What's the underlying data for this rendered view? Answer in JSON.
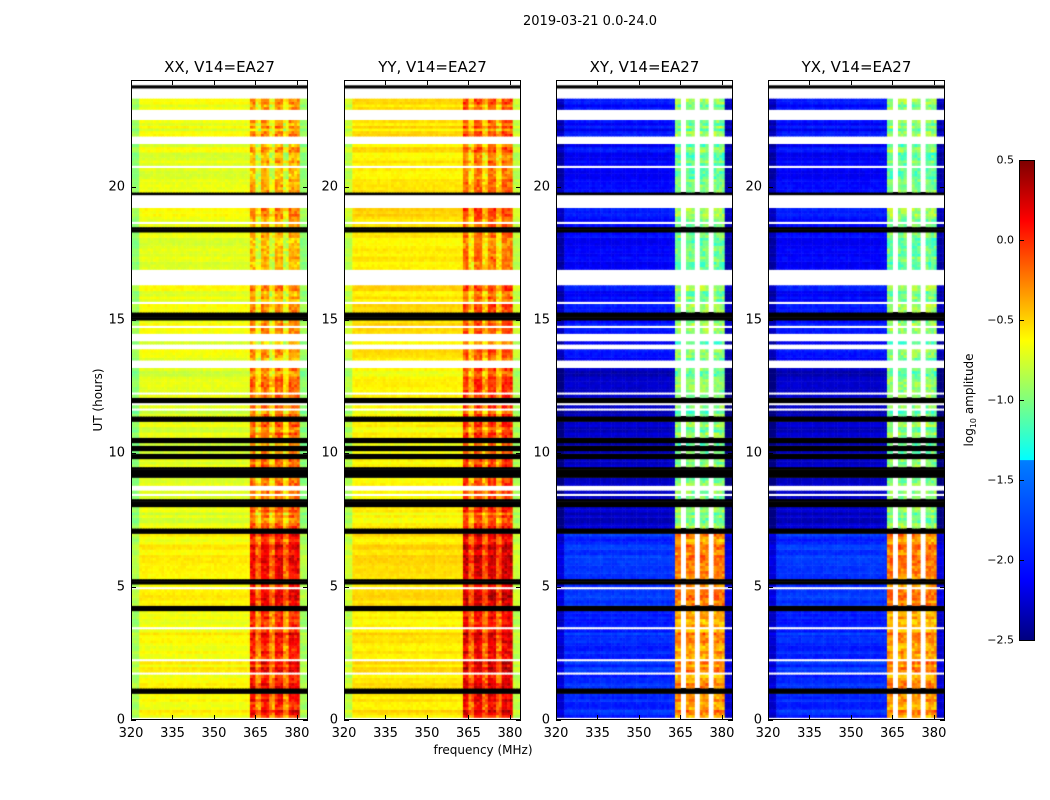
{
  "title": "2019-03-21 0.0-24.0",
  "chart_data": {
    "type": "heatmap",
    "title": "2019-03-21 0.0-24.0",
    "xlabel": "frequency (MHz)",
    "ylabel": "UT (hours)",
    "xlim": [
      320,
      384
    ],
    "ylim": [
      0,
      24
    ],
    "xticks": [
      "320",
      "335",
      "350",
      "365",
      "380"
    ],
    "yticks": [
      "0",
      "5",
      "10",
      "15",
      "20"
    ],
    "colorbar": {
      "label_main": "log",
      "label_sub": "10",
      "label_rest": " amplitude",
      "range": [
        -2.5,
        0.5
      ],
      "ticks": [
        "0.5",
        "0.0",
        "−0.5",
        "−1.0",
        "−1.5",
        "−2.0",
        "−2.5"
      ],
      "colormap": "jet"
    },
    "time_segments_hours": [
      [
        0,
        7.2
      ],
      [
        7.2,
        13.3
      ],
      [
        13.3,
        24
      ]
    ],
    "rfi_band_mhz": [
      363,
      381
    ],
    "rfi_stripe_gaps_mhz": [
      366,
      371,
      376
    ],
    "flagged_gaps_hours": [
      [
        23.5,
        23.75
      ],
      [
        22.55,
        22.8
      ],
      [
        21.6,
        21.75
      ],
      [
        19.2,
        19.7
      ],
      [
        18.3,
        18.45
      ],
      [
        16.35,
        16.9
      ],
      [
        15.6,
        15.7
      ],
      [
        13.3,
        13.5
      ],
      [
        14.3,
        14.45
      ]
    ],
    "dark_rows_hours": [
      23.75,
      19.75,
      18.4,
      15.25,
      15.1,
      12.0,
      11.3,
      10.5,
      10.2,
      9.9,
      9.4,
      9.2,
      8.25,
      8.1,
      7.1,
      5.2,
      4.2,
      1.15,
      1.05
    ],
    "panels": [
      {
        "title": "XX, V14=EA27",
        "background_level": [
          -0.62,
          -0.72,
          -0.68
        ],
        "band_level": [
          0.1,
          -0.2,
          -0.35
        ]
      },
      {
        "title": "YY, V14=EA27",
        "background_level": [
          -0.55,
          -0.62,
          -0.55
        ],
        "band_level": [
          0.2,
          -0.05,
          -0.15
        ]
      },
      {
        "title": "XY, V14=EA27",
        "background_level": [
          -2.0,
          -2.3,
          -2.1
        ],
        "band_level": [
          -0.3,
          -1.0,
          -1.0
        ]
      },
      {
        "title": "YX, V14=EA27",
        "background_level": [
          -2.0,
          -2.3,
          -2.1
        ],
        "band_level": [
          -0.3,
          -1.0,
          -1.0
        ]
      }
    ]
  }
}
